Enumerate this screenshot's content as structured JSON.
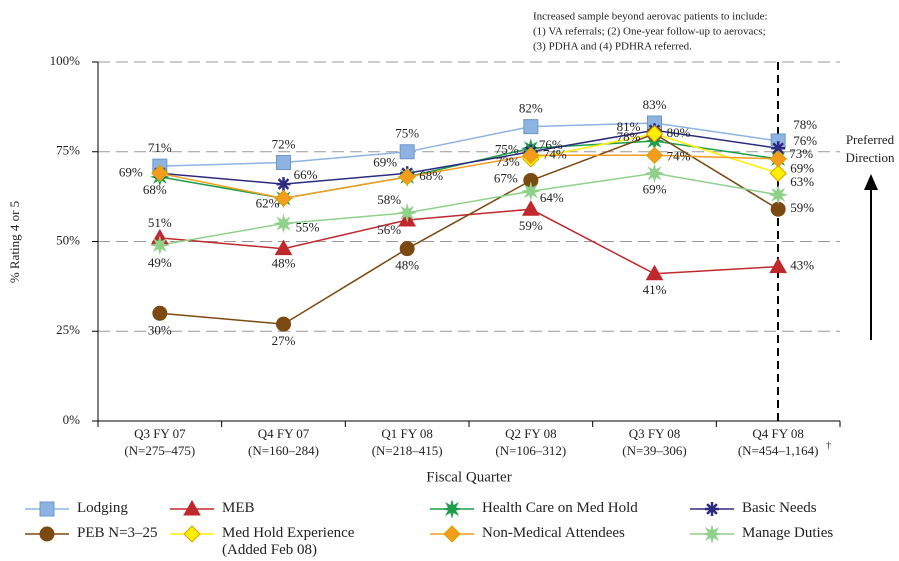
{
  "chart_data": {
    "type": "line",
    "annotation": [
      "Increased sample beyond aerovac patients to include:",
      "(1) VA referrals; (2) One-year follow-up to aerovacs;",
      "(3) PDHA and (4) PDHRA referred."
    ],
    "direction_note": [
      "Preferred",
      "Direction"
    ],
    "y_label": "% Rating 4 or 5",
    "x_label": "Fiscal  Quarter",
    "categories": [
      "Q3 FY 07",
      "Q4 FY 07",
      "Q1 FY 08",
      "Q2 FY 08",
      "Q3 FY 08",
      "Q4 FY 08"
    ],
    "category_n": [
      "(N=275–475)",
      "(N=160–284)",
      "(N=218–415)",
      "(N=106–312)",
      "(N=39–306)",
      "(N=454–1,164)"
    ],
    "footnote_mark": "†",
    "ylim": [
      0,
      100
    ],
    "yticks": [
      {
        "value": 0,
        "label": "0%"
      },
      {
        "value": 25,
        "label": "25%"
      },
      {
        "value": 50,
        "label": "50%"
      },
      {
        "value": 75,
        "label": "75%"
      },
      {
        "value": 100,
        "label": "100%"
      }
    ],
    "grid": true,
    "series": [
      {
        "name": "Lodging",
        "color": "#8db3e2",
        "marker": "square",
        "values": [
          71,
          72,
          75,
          82,
          83,
          78
        ],
        "value_labels": [
          "71%",
          "72%",
          "75%",
          "82%",
          "83%",
          "78%"
        ]
      },
      {
        "name": "MEB",
        "color": "#c0282d",
        "marker": "triangle",
        "values": [
          51,
          48,
          56,
          59,
          41,
          43
        ],
        "value_labels": [
          "51%",
          "48%",
          "56%",
          "59%",
          "41%",
          "43%"
        ]
      },
      {
        "name": "Health Care on Med Hold",
        "color": "#1e9e4a",
        "marker": "star",
        "values": [
          68,
          62,
          68,
          76,
          78,
          73
        ],
        "value_labels": [
          "68%",
          "62%",
          "68%",
          "76%",
          "78%",
          "73%"
        ]
      },
      {
        "name": "Basic Needs",
        "color": "#2b2b80",
        "marker": "asterisk",
        "values": [
          69,
          66,
          69,
          75,
          81,
          76
        ],
        "value_labels": [
          "69%",
          "66%",
          "69%",
          "75%",
          "81%",
          "76%"
        ]
      },
      {
        "name": "PEB N=3–25",
        "color": "#7b4a12",
        "marker": "circle",
        "values": [
          30,
          27,
          48,
          67,
          80,
          59
        ],
        "value_labels": [
          "30%",
          "27%",
          "48%",
          "67%",
          "80%",
          "59%"
        ]
      },
      {
        "name": "Med Hold Experience (Added Feb 08)",
        "color": "#ffee00",
        "marker": "diamond",
        "values": [
          null,
          null,
          null,
          73,
          80,
          69
        ],
        "value_labels": [
          null,
          null,
          null,
          "73%",
          null,
          "69%"
        ]
      },
      {
        "name": "Non-Medical Attendees",
        "color": "#f39c1e",
        "marker": "diamond",
        "values": [
          69,
          62,
          68,
          74,
          74,
          73
        ],
        "value_labels": [
          null,
          null,
          null,
          "74%",
          "74%",
          null
        ]
      },
      {
        "name": "Manage Duties",
        "color": "#8fd18a",
        "marker": "star",
        "values": [
          49,
          55,
          58,
          64,
          69,
          63
        ],
        "value_labels": [
          "49%",
          "55%",
          "58%",
          "64%",
          "69%",
          "63%"
        ]
      }
    ]
  }
}
